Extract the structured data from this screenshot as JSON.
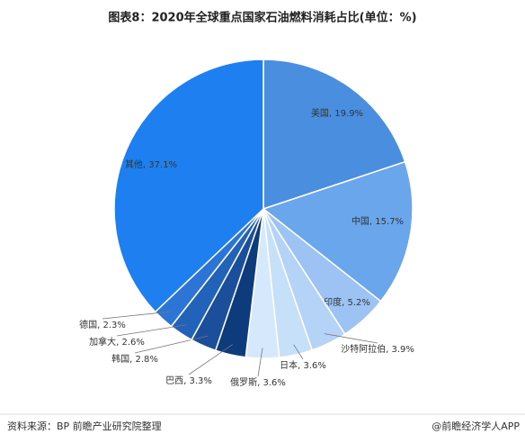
{
  "chart_data": {
    "type": "pie",
    "title": "图表8：2020年全球重点国家石油燃料消耗占比(单位：%)",
    "values": [
      19.9,
      15.7,
      5.2,
      3.9,
      3.6,
      3.6,
      3.3,
      2.8,
      2.6,
      2.3,
      37.1
    ],
    "value_labels": [
      "美国, 19.9%",
      "中国, 15.7%",
      "印度, 5.2%",
      "沙特阿拉伯, 3.9%",
      "日本, 3.6%",
      "俄罗斯, 3.6%",
      "巴西, 3.3%",
      "韩国, 2.8%",
      "加拿大, 2.6%",
      "德国, 2.3%",
      "其他, 37.1%"
    ],
    "colors": [
      "#4a8ee0",
      "#6aa6ec",
      "#9cc3f3",
      "#b5d3f7",
      "#c7e0fa",
      "#d6e8fc",
      "#0e3b7c",
      "#1b4f9c",
      "#2262b8",
      "#2c75d6",
      "#1e80f0"
    ],
    "source": "资料来源：BP 前瞻产业研究院整理",
    "credit": "@前瞻经济学人APP"
  }
}
